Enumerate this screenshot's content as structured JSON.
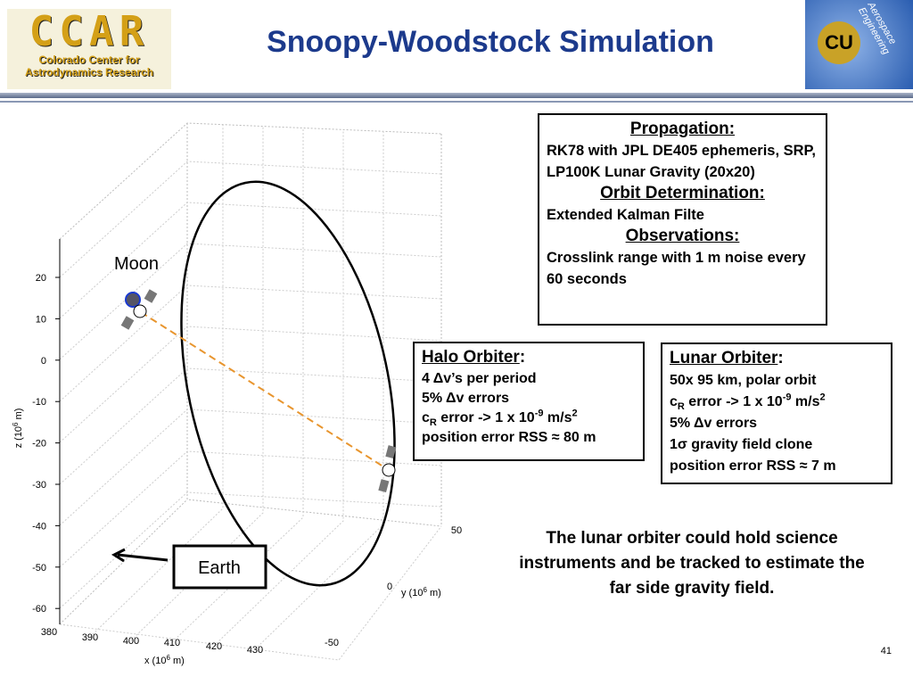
{
  "header": {
    "logo_left": {
      "title": "CCAR",
      "line1": "Colorado Center for",
      "line2": "Astrodynamics Research"
    },
    "title": "Snoopy-Woodstock Simulation",
    "logo_right": {
      "text": "Aerospace Engineering",
      "emblem": "CU"
    }
  },
  "plot": {
    "z_label": [
      "z (10",
      "6",
      " m)"
    ],
    "z_ticks": [
      20,
      10,
      0,
      -10,
      -20,
      -30,
      -40,
      -50,
      -60
    ],
    "x_label": [
      "x (10",
      "6",
      " m)"
    ],
    "x_ticks": [
      380,
      390,
      400,
      410,
      420,
      430
    ],
    "y_label": [
      "y (10",
      "6",
      " m)"
    ],
    "y_ticks": [
      50,
      0,
      -50
    ],
    "moon_label": "Moon",
    "earth_label": "Earth"
  },
  "propagation_box": {
    "heading1": "Propagation:",
    "text1": "RK78 with JPL DE405 ephemeris, SRP, LP100K Lunar Gravity (20x20)",
    "heading2": "Orbit Determination:",
    "text2": "Extended Kalman Filte",
    "heading3": "Observations:",
    "text3": "Crosslink range with 1 m noise every 60 seconds"
  },
  "halo_box": {
    "heading": "Halo Orbiter",
    "colon": ":",
    "line1": "4 Δv’s per period",
    "line2": "5% Δv errors",
    "line3": [
      "c",
      "R",
      " error -> 1 x 10",
      "-9",
      " m/s",
      "2"
    ],
    "line4": "position error RSS ≈ 80 m"
  },
  "lunar_box": {
    "heading": "Lunar Orbiter",
    "colon": ":",
    "line1": "50x 95 km, polar orbit",
    "line2": [
      "c",
      "R",
      " error -> 1 x 10",
      "-9",
      " m/s",
      "2"
    ],
    "line3": "5% Δv errors",
    "line4": "1σ gravity field clone",
    "line5": "position error RSS ≈ 7 m"
  },
  "caption": "The lunar orbiter could hold science instruments and be tracked to estimate the far side gravity field.",
  "page_number": "41"
}
